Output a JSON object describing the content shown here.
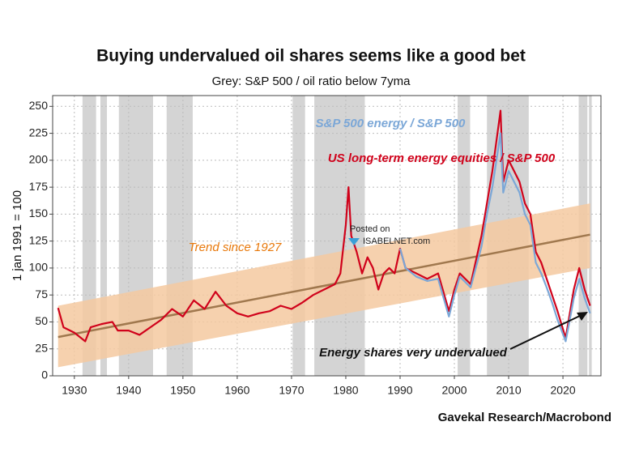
{
  "chart_data": {
    "type": "line",
    "title": "Buying undervalued oil shares seems like a good bet",
    "subtitle": "Grey: S&P 500 / oil ratio below 7yma",
    "y_label": "1 jan 1991 = 100",
    "source": "Gavekal Research/Macrobond",
    "watermark": [
      "Posted on",
      "ISABELNET.com"
    ],
    "annotation": "Energy shares very undervalued",
    "xlim": [
      1926,
      2027
    ],
    "ylim": [
      0,
      260
    ],
    "xticks": [
      1930,
      1940,
      1950,
      1960,
      1970,
      1980,
      1990,
      2000,
      2010,
      2020
    ],
    "yticks": [
      0,
      25,
      50,
      75,
      100,
      125,
      150,
      175,
      200,
      225,
      250
    ],
    "grid": true,
    "shade_color": "#d4d4d4",
    "shaded_periods": [
      [
        1931.5,
        1934
      ],
      [
        1934.8,
        1936
      ],
      [
        1938.2,
        1944.5
      ],
      [
        1947,
        1951.8
      ],
      [
        1970.2,
        1972.5
      ],
      [
        1974.2,
        1983.5
      ],
      [
        2000.6,
        2002.9
      ],
      [
        2006,
        2013.7
      ],
      [
        2022.9,
        2024.5
      ],
      [
        2024.8,
        2025.3
      ]
    ],
    "trend": {
      "name": "Trend since 1927",
      "color": "#a0784e",
      "band_color": "#f5c9a0",
      "label_color": "#e8780a",
      "x": [
        1927,
        2025
      ],
      "values": [
        36,
        131
      ],
      "band_lower": [
        8,
        100
      ],
      "band_upper": [
        65,
        160
      ]
    },
    "series": [
      {
        "name": "US long-term energy equities / S&P 500",
        "color": "#d0021b",
        "x": [
          1927,
          1928,
          1930,
          1932,
          1933,
          1935,
          1937,
          1938,
          1940,
          1942,
          1944,
          1946,
          1948,
          1950,
          1952,
          1954,
          1956,
          1958,
          1960,
          1962,
          1964,
          1966,
          1968,
          1970,
          1972,
          1974,
          1976,
          1978,
          1979,
          1980,
          1980.5,
          1981,
          1982,
          1983,
          1984,
          1985,
          1986,
          1987,
          1988,
          1989,
          1990,
          1991,
          1993,
          1995,
          1997,
          1999,
          2000,
          2001,
          2003,
          2005,
          2006,
          2007,
          2008.5,
          2009,
          2010,
          2011,
          2012,
          2013,
          2014,
          2015,
          2016,
          2017,
          2018,
          2019,
          2020.5,
          2021,
          2022,
          2023,
          2024,
          2025
        ],
        "values": [
          63,
          45,
          40,
          32,
          45,
          48,
          50,
          42,
          42,
          38,
          45,
          52,
          62,
          55,
          70,
          62,
          78,
          65,
          58,
          55,
          58,
          60,
          65,
          62,
          68,
          75,
          80,
          85,
          95,
          140,
          175,
          130,
          115,
          95,
          110,
          100,
          80,
          95,
          100,
          95,
          118,
          100,
          95,
          90,
          95,
          60,
          80,
          95,
          85,
          130,
          160,
          190,
          246,
          180,
          200,
          190,
          180,
          160,
          150,
          115,
          105,
          90,
          75,
          60,
          35,
          50,
          80,
          100,
          80,
          65
        ]
      },
      {
        "name": "S&P 500 energy / S&P 500",
        "color": "#7ba7d7",
        "x": [
          1990,
          1991,
          1993,
          1995,
          1997,
          1999,
          2000,
          2001,
          2003,
          2005,
          2006,
          2007,
          2008.5,
          2009,
          2010,
          2011,
          2012,
          2013,
          2014,
          2015,
          2016,
          2017,
          2018,
          2019,
          2020.5,
          2021,
          2022,
          2023,
          2024,
          2025
        ],
        "values": [
          118,
          100,
          92,
          88,
          90,
          55,
          75,
          92,
          82,
          120,
          150,
          175,
          225,
          170,
          190,
          180,
          170,
          150,
          140,
          105,
          95,
          82,
          68,
          52,
          32,
          45,
          72,
          90,
          72,
          58
        ]
      }
    ]
  }
}
